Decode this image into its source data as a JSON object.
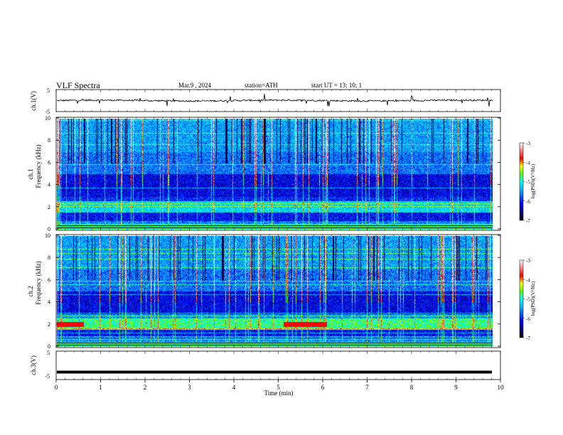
{
  "header": {
    "title": "VLF  Spectra",
    "date": "Mar.9  , 2024",
    "station": "station=ATH",
    "start_ut": "start  UT  =    13: 10: 1"
  },
  "chart_data": [
    {
      "type": "line",
      "name": "ch1-waveform",
      "ylabel": "ch.1(V)",
      "ylim": [
        -5,
        5
      ],
      "yticks": [
        "5",
        "-5"
      ],
      "xlim": [
        0,
        10
      ]
    },
    {
      "type": "heatmap",
      "name": "ch1-spectrogram",
      "ylabel_top": "ch.1",
      "ylabel": "Frequency  (kHz)",
      "ylim": [
        0,
        10
      ],
      "yticks": [
        "0",
        "2",
        "4",
        "6",
        "8",
        "10"
      ],
      "xlim": [
        0,
        9.8
      ],
      "colorbar": {
        "label": "log(PSD)(V²/Hz)",
        "ticks": [
          "-3",
          "-4",
          "-5",
          "-6",
          "-7"
        ],
        "range": [
          -7,
          -3
        ]
      }
    },
    {
      "type": "heatmap",
      "name": "ch2-spectrogram",
      "ylabel_top": "ch.2",
      "ylabel": "Frequency  (kHz)",
      "ylim": [
        0,
        10
      ],
      "yticks": [
        "0",
        "2",
        "4",
        "6",
        "8",
        "10"
      ],
      "xlim": [
        0,
        9.8
      ],
      "colorbar": {
        "label": "log(PSD)(V²/Hz)",
        "ticks": [
          "-3",
          "-4",
          "-5",
          "-6",
          "-7"
        ],
        "range": [
          -7,
          -3
        ]
      }
    },
    {
      "type": "line",
      "name": "ch3-waveform",
      "ylabel": "ch.3(V)",
      "ylim": [
        -5,
        5
      ],
      "yticks": [
        "5",
        "-5"
      ],
      "xlim": [
        0,
        10
      ],
      "values_approx": {
        "level": -2.5
      }
    }
  ],
  "x_axis": {
    "label": "Time  (min)",
    "ticks": [
      "0",
      "1",
      "2",
      "3",
      "4",
      "5",
      "6",
      "7",
      "8",
      "9",
      "10"
    ]
  },
  "colors": {
    "colormap": [
      "#000000",
      "#00007a",
      "#0000ff",
      "#00aaff",
      "#00ffff",
      "#55ff00",
      "#ffff00",
      "#ff0000",
      "#ff9999",
      "#ffffff"
    ]
  }
}
